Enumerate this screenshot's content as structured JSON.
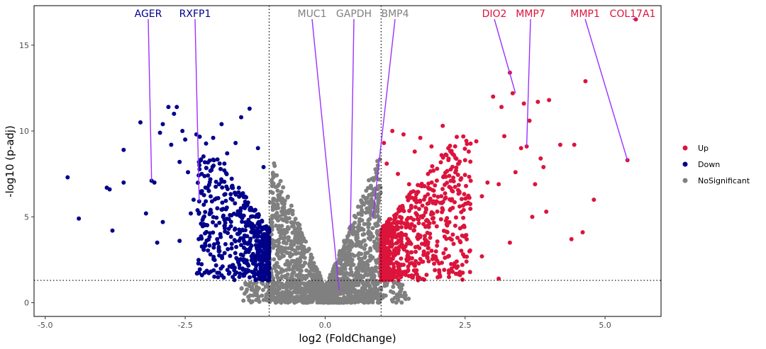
{
  "chart_data": {
    "type": "scatter",
    "title": "",
    "xlabel": "log2 (FoldChange)",
    "ylabel": "-log10 (p-adj)",
    "xlim": [
      -5.2,
      6.0
    ],
    "ylim": [
      -0.8,
      17.3
    ],
    "x_ticks": [
      -5.0,
      -2.5,
      0.0,
      2.5,
      5.0
    ],
    "x_tick_labels": [
      "-5.0",
      "-2.5",
      "0.0",
      "2.5",
      "5.0"
    ],
    "y_ticks": [
      0,
      5,
      10,
      15
    ],
    "y_tick_labels": [
      "0",
      "5",
      "10",
      "15"
    ],
    "grid": false,
    "thresholds": {
      "log2fc": [
        -1,
        1
      ],
      "neg_log10_padj": 1.3
    },
    "legend": {
      "position": "right",
      "entries": [
        {
          "label": "Up",
          "color": "#DC143C"
        },
        {
          "label": "Down",
          "color": "#00008B"
        },
        {
          "label": "NoSignificant",
          "color": "#808080"
        }
      ]
    },
    "colors": {
      "Up": "#DC143C",
      "Down": "#00008B",
      "NoSignificant": "#808080",
      "connector": "#9B30FF"
    },
    "labeled_genes": [
      {
        "name": "AGER",
        "group": "Down",
        "x": -3.1,
        "y": 7.1
      },
      {
        "name": "RXFP1",
        "group": "Down",
        "x": -2.25,
        "y": 5.9
      },
      {
        "name": "MUC1",
        "group": "NoSignificant",
        "x": 0.25,
        "y": 0.7
      },
      {
        "name": "GAPDH",
        "group": "NoSignificant",
        "x": 0.45,
        "y": 4.2
      },
      {
        "name": "BMP4",
        "group": "NoSignificant",
        "x": 0.85,
        "y": 4.9
      },
      {
        "name": "DIO2",
        "group": "Up",
        "x": 3.4,
        "y": 12.2
      },
      {
        "name": "MMP7",
        "group": "Up",
        "x": 3.6,
        "y": 9.1
      },
      {
        "name": "MMP1",
        "group": "Up",
        "x": 5.4,
        "y": 8.3
      },
      {
        "name": "COL17A1",
        "group": "Up",
        "x": 5.55,
        "y": 16.5
      }
    ],
    "points": {
      "Down": [
        [
          -4.6,
          7.3
        ],
        [
          -4.4,
          4.9
        ],
        [
          -3.9,
          6.7
        ],
        [
          -3.85,
          6.6
        ],
        [
          -3.8,
          4.2
        ],
        [
          -3.6,
          8.9
        ],
        [
          -3.6,
          7.0
        ],
        [
          -3.3,
          10.5
        ],
        [
          -3.2,
          5.2
        ],
        [
          -3.1,
          7.1
        ],
        [
          -3.05,
          7.0
        ],
        [
          -3.0,
          3.5
        ],
        [
          -2.95,
          9.9
        ],
        [
          -2.9,
          10.4
        ],
        [
          -2.8,
          11.4
        ],
        [
          -2.75,
          9.2
        ],
        [
          -2.7,
          11.0
        ],
        [
          -2.65,
          11.4
        ],
        [
          -2.6,
          8.2
        ],
        [
          -2.55,
          10.0
        ],
        [
          -2.5,
          9.5
        ],
        [
          -2.45,
          7.6
        ],
        [
          -2.4,
          5.2
        ],
        [
          -2.3,
          9.8
        ],
        [
          -2.25,
          5.9
        ],
        [
          -2.2,
          6.5
        ],
        [
          -2.1,
          6.7
        ],
        [
          -2.0,
          9.6
        ],
        [
          -1.95,
          4.5
        ],
        [
          -1.9,
          3.0
        ],
        [
          -1.85,
          10.4
        ],
        [
          -1.8,
          8.1
        ],
        [
          -1.75,
          8.7
        ],
        [
          -1.7,
          5.1
        ],
        [
          -1.6,
          9.3
        ],
        [
          -1.55,
          4.0
        ],
        [
          -1.5,
          10.8
        ],
        [
          -1.45,
          3.2
        ],
        [
          -1.35,
          11.3
        ],
        [
          -1.3,
          4.4
        ],
        [
          -1.25,
          2.4
        ],
        [
          -1.2,
          9.0
        ],
        [
          -1.15,
          3.5
        ],
        [
          -1.1,
          7.9
        ],
        [
          -2.35,
          6.0
        ],
        [
          -2.9,
          4.7
        ],
        [
          -2.6,
          3.6
        ],
        [
          -2.2,
          1.6
        ],
        [
          -1.65,
          1.5
        ],
        [
          -1.4,
          1.8
        ]
      ],
      "Up": [
        [
          1.05,
          9.3
        ],
        [
          1.1,
          8.1
        ],
        [
          1.2,
          10.0
        ],
        [
          1.3,
          7.5
        ],
        [
          1.4,
          9.8
        ],
        [
          1.5,
          6.9
        ],
        [
          1.6,
          8.8
        ],
        [
          1.7,
          9.6
        ],
        [
          1.8,
          5.5
        ],
        [
          1.9,
          9.1
        ],
        [
          2.0,
          7.8
        ],
        [
          2.1,
          10.3
        ],
        [
          2.2,
          9.0
        ],
        [
          2.3,
          8.6
        ],
        [
          2.4,
          6.4
        ],
        [
          2.5,
          8.3
        ],
        [
          2.6,
          7.1
        ],
        [
          2.7,
          9.4
        ],
        [
          2.8,
          6.2
        ],
        [
          2.9,
          7.0
        ],
        [
          3.0,
          12.0
        ],
        [
          3.1,
          6.9
        ],
        [
          3.15,
          11.4
        ],
        [
          3.2,
          9.7
        ],
        [
          3.3,
          13.4
        ],
        [
          3.35,
          12.2
        ],
        [
          3.4,
          7.6
        ],
        [
          3.5,
          9.0
        ],
        [
          3.55,
          11.6
        ],
        [
          3.6,
          9.1
        ],
        [
          3.65,
          10.6
        ],
        [
          3.7,
          5.0
        ],
        [
          3.75,
          6.9
        ],
        [
          3.8,
          11.7
        ],
        [
          3.85,
          8.4
        ],
        [
          3.9,
          7.9
        ],
        [
          4.0,
          11.8
        ],
        [
          4.2,
          9.2
        ],
        [
          4.4,
          3.7
        ],
        [
          4.45,
          9.2
        ],
        [
          4.6,
          4.1
        ],
        [
          4.65,
          12.9
        ],
        [
          4.8,
          6.0
        ],
        [
          5.4,
          8.3
        ],
        [
          5.55,
          16.5
        ],
        [
          3.1,
          1.4
        ],
        [
          2.8,
          2.7
        ],
        [
          2.35,
          2.4
        ],
        [
          3.3,
          3.5
        ],
        [
          3.95,
          5.3
        ]
      ]
    }
  }
}
